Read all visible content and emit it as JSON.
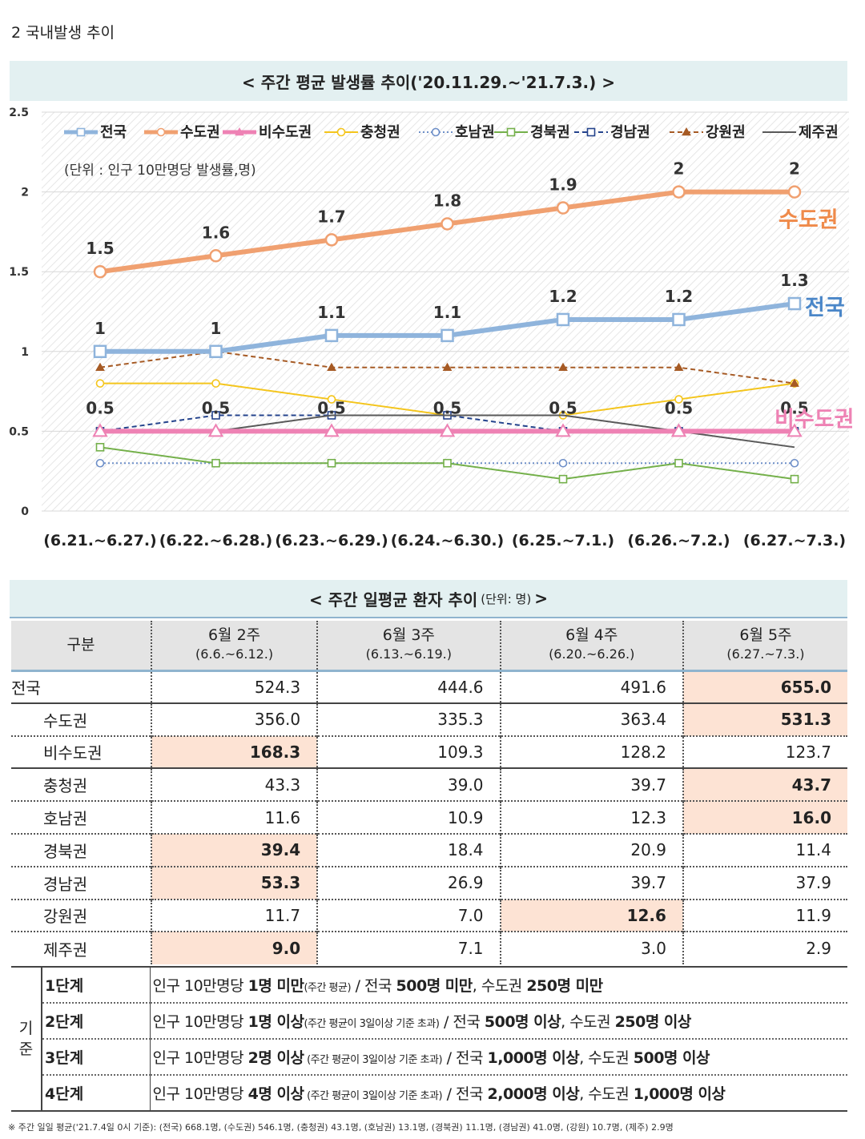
{
  "section_title": "2  국내발생 추이",
  "chart_banner": "< 주간 평균 발생률 추이('20.11.29.~'21.7.3.) >",
  "chart_data": {
    "type": "line",
    "title": "< 주간 평균 발생률 추이('20.11.29.~'21.7.3.) >",
    "unit_note": "(단위 : 인구 10만명당 발생률,명)",
    "categories": [
      "(6.21.~6.27.)",
      "(6.22.~6.28.)",
      "(6.23.~6.29.)",
      "(6.24.~6.30.)",
      "(6.25.~7.1.)",
      "(6.26.~7.2.)",
      "(6.27.~7.3.)"
    ],
    "ylim": [
      0,
      2.5
    ],
    "y_ticks": [
      "0",
      "0.5",
      "1",
      "1.5",
      "2",
      "2.5"
    ],
    "legend_position": "top",
    "series": [
      {
        "name": "전국",
        "values": [
          1.0,
          1.0,
          1.1,
          1.1,
          1.2,
          1.2,
          1.3
        ],
        "labels": [
          "1",
          "1",
          "1.1",
          "1.1",
          "1.2",
          "1.2",
          "1.3"
        ],
        "color": "#8fb4dc",
        "marker": "square",
        "style": "thick",
        "callout": "전국"
      },
      {
        "name": "수도권",
        "values": [
          1.5,
          1.6,
          1.7,
          1.8,
          1.9,
          2.0,
          2.0
        ],
        "labels": [
          "1.5",
          "1.6",
          "1.7",
          "1.8",
          "1.9",
          "2",
          "2"
        ],
        "color": "#f0a070",
        "marker": "circle",
        "style": "thick",
        "callout": "수도권"
      },
      {
        "name": "비수도권",
        "values": [
          0.5,
          0.5,
          0.5,
          0.5,
          0.5,
          0.5,
          0.5
        ],
        "labels": [
          "0.5",
          "0.5",
          "0.5",
          "0.5",
          "0.5",
          "0.5",
          "0.5"
        ],
        "color": "#ee82b4",
        "marker": "triangle",
        "style": "thick",
        "callout": "비수도권"
      },
      {
        "name": "충청권",
        "values": [
          0.8,
          0.8,
          0.7,
          0.6,
          0.6,
          0.7,
          0.8
        ],
        "color": "#f4c51c",
        "marker": "circle",
        "style": "solid"
      },
      {
        "name": "호남권",
        "values": [
          0.3,
          0.3,
          0.3,
          0.3,
          0.3,
          0.3,
          0.3
        ],
        "color": "#6e8fc8",
        "marker": "circle",
        "style": "dotted"
      },
      {
        "name": "경북권",
        "values": [
          0.4,
          0.3,
          0.3,
          0.3,
          0.2,
          0.3,
          0.2
        ],
        "color": "#74b04a",
        "marker": "square",
        "style": "solid"
      },
      {
        "name": "경남권",
        "values": [
          0.5,
          0.6,
          0.6,
          0.6,
          0.5,
          0.5,
          0.5
        ],
        "color": "#24438c",
        "marker": "square",
        "style": "dashed"
      },
      {
        "name": "강원권",
        "values": [
          0.9,
          1.0,
          0.9,
          0.9,
          0.9,
          0.9,
          0.8
        ],
        "color": "#a65a24",
        "marker": "triangle",
        "style": "dashed"
      },
      {
        "name": "제주권",
        "values": [
          0.5,
          0.5,
          0.6,
          0.6,
          0.6,
          0.5,
          0.4
        ],
        "color": "#595959",
        "marker": "none",
        "style": "solid"
      }
    ]
  },
  "table": {
    "banner_prefix": "< 주간 일평균 환자 추이",
    "banner_unit": "(단위: 명)",
    "banner_suffix": ">",
    "headers": [
      {
        "label": "구분",
        "sub": ""
      },
      {
        "label": "6월 2주",
        "sub": "(6.6.~6.12.)"
      },
      {
        "label": "6월 3주",
        "sub": "(6.13.~6.19.)"
      },
      {
        "label": "6월 4주",
        "sub": "(6.20.~6.26.)"
      },
      {
        "label": "6월 5주",
        "sub": "(6.27.~7.3.)"
      }
    ],
    "rows": [
      {
        "name": "전국",
        "values": [
          "524.3",
          "444.6",
          "491.6",
          "655.0"
        ]
      },
      {
        "name": "수도권",
        "values": [
          "356.0",
          "335.3",
          "363.4",
          "531.3"
        ]
      },
      {
        "name": "비수도권",
        "values": [
          "168.3",
          "109.3",
          "128.2",
          "123.7"
        ]
      },
      {
        "name": "충청권",
        "values": [
          "43.3",
          "39.0",
          "39.7",
          "43.7"
        ]
      },
      {
        "name": "호남권",
        "values": [
          "11.6",
          "10.9",
          "12.3",
          "16.0"
        ]
      },
      {
        "name": "경북권",
        "values": [
          "39.4",
          "18.4",
          "20.9",
          "11.4"
        ]
      },
      {
        "name": "경남권",
        "values": [
          "53.3",
          "26.9",
          "39.7",
          "37.9"
        ]
      },
      {
        "name": "강원권",
        "values": [
          "11.7",
          "7.0",
          "12.6",
          "11.9"
        ]
      },
      {
        "name": "제주권",
        "values": [
          "9.0",
          "7.1",
          "3.0",
          "2.9"
        ]
      }
    ]
  },
  "criteria": {
    "group_label_1": "기",
    "group_label_2": "준",
    "levels": [
      {
        "level": "1단계",
        "p1": "인구 10만명당 ",
        "b1": "1명 미만",
        "small": "(주간 평균)",
        "p2": " / 전국 ",
        "b2": "500명 미만",
        "p3": ", 수도권 ",
        "b3": "250명 미만",
        "p4": ""
      },
      {
        "level": "2단계",
        "p1": "인구 10만명당 ",
        "b1": "1명 이상",
        "small": "(주간 평균이 3일이상 기준 초과)",
        "p2": " / 전국 ",
        "b2": "500명 이상",
        "p3": ", 수도권 ",
        "b3": "250명 이상",
        "p4": ""
      },
      {
        "level": "3단계",
        "p1": "인구 10만명당 ",
        "b1": "2명 이상",
        "small": " (주간 평균이 3일이상 기준 초과)",
        "p2": " / 전국 ",
        "b2": "1,000명 이상",
        "p3": ", 수도권 ",
        "b3": "500명 이상",
        "p4": ""
      },
      {
        "level": "4단계",
        "p1": "인구 10만명당 ",
        "b1": "4명 이상",
        "small": " (주간 평균이 3일이상 기준 초과)",
        "p2": " / 전국 ",
        "b2": "2,000명 이상",
        "p3": ", 수도권 ",
        "b3": "1,000명 이상",
        "p4": ""
      }
    ]
  },
  "footnote": "※ 주간 일일 평균('21.7.4일 0시 기준): (전국) 668.1명, (수도권) 546.1명, (충청권) 43.1명, (호남권) 13.1명, (경북권) 11.1명, (경남권) 41.0명, (강원) 10.7명, (제주) 2.9명"
}
